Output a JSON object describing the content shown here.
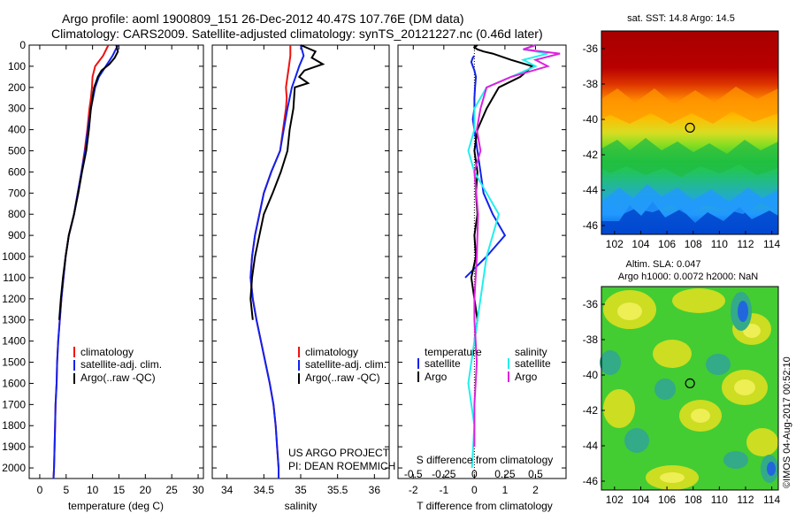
{
  "header": {
    "line1": "Argo profile: aoml 1900809_151 26-Dec-2012 40.47S 107.76E (DM data)",
    "line2": "Climatology: CARS2009. Satellite-adjusted climatology: synTS_20121227.nc (0.46d later)"
  },
  "side_stamp": "©IMOS 04-Aug-2017 00:52:10",
  "project_text": [
    "US ARGO PROJECT",
    "PI: DEAN ROEMMICH"
  ],
  "colors": {
    "climatology": "#ee1111",
    "satellite": "#1122ee",
    "argo": "#000000",
    "sat_salinity": "#22eeee",
    "argo_salinity": "#dd22dd"
  },
  "chart_data": [
    {
      "type": "line",
      "xlabel": "temperature (deg C)",
      "xlim": [
        -2,
        31
      ],
      "ylim": [
        0,
        2050
      ],
      "xticks": [
        0,
        5,
        10,
        15,
        20,
        25,
        30
      ],
      "yticks": [
        0,
        100,
        200,
        300,
        400,
        500,
        600,
        700,
        800,
        900,
        1000,
        1100,
        1200,
        1300,
        1400,
        1500,
        1600,
        1700,
        1800,
        1900,
        2000
      ],
      "legend": [
        "climatology",
        "satellite-adj. clim.",
        "Argo(..raw -QC)"
      ],
      "series": [
        {
          "name": "climatology",
          "color": "#ee1111",
          "x": [
            13.0,
            12.0,
            10.5,
            10.0,
            9.9,
            9.7,
            9.4,
            9.0,
            8.5,
            7.9,
            7.2,
            6.5,
            5.5,
            4.9,
            4.5,
            4.1,
            3.8,
            3.5,
            3.3,
            3.2,
            3.0,
            2.9,
            2.8,
            2.7,
            2.6
          ],
          "y": [
            0,
            50,
            100,
            150,
            200,
            250,
            300,
            400,
            500,
            600,
            700,
            800,
            900,
            1000,
            1100,
            1200,
            1300,
            1400,
            1500,
            1600,
            1700,
            1800,
            1900,
            2000,
            2050
          ]
        },
        {
          "name": "satellite-adj. clim.",
          "color": "#1122ee",
          "x": [
            14.8,
            13.8,
            12.5,
            11.2,
            10.5,
            10.1,
            9.7,
            9.1,
            8.6,
            7.9,
            7.2,
            6.5,
            5.5,
            4.9,
            4.5,
            4.1,
            3.8,
            3.5,
            3.3,
            3.2,
            3.0,
            2.9,
            2.8,
            2.7,
            2.6
          ],
          "y": [
            0,
            50,
            100,
            150,
            200,
            250,
            300,
            400,
            500,
            600,
            700,
            800,
            900,
            1000,
            1100,
            1200,
            1300,
            1400,
            1500,
            1600,
            1700,
            1800,
            1900,
            2000,
            2050
          ]
        },
        {
          "name": "Argo(..raw -QC)",
          "color": "#000000",
          "x": [
            14.5,
            14.8,
            14.2,
            13.2,
            11.7,
            11.0,
            10.6,
            10.3,
            9.7,
            9.3,
            8.8,
            8.0,
            7.3,
            6.5,
            5.5,
            4.9,
            4.4,
            4.0,
            3.7
          ],
          "y": [
            0,
            30,
            60,
            90,
            120,
            150,
            180,
            200,
            300,
            400,
            500,
            600,
            700,
            800,
            900,
            1000,
            1100,
            1200,
            1300
          ]
        }
      ]
    },
    {
      "type": "line",
      "xlabel": "salinity",
      "xlim": [
        33.8,
        36.2
      ],
      "ylim": [
        0,
        2050
      ],
      "xticks": [
        34,
        34.5,
        35,
        35.5,
        36
      ],
      "legend": [
        "climatology",
        "satellite-adj. clim.",
        "Argo(..raw -QC)"
      ],
      "series": [
        {
          "name": "climatology",
          "color": "#ee1111",
          "x": [
            34.86,
            34.86,
            34.84,
            34.82,
            34.8,
            34.81,
            34.8,
            34.76,
            34.72,
            34.6,
            34.5,
            34.44,
            34.38,
            34.34,
            34.32,
            34.35,
            34.4,
            34.46,
            34.52,
            34.58,
            34.63,
            34.66,
            34.68,
            34.7,
            34.7
          ],
          "y": [
            0,
            50,
            100,
            150,
            200,
            250,
            300,
            400,
            500,
            600,
            700,
            800,
            900,
            1000,
            1100,
            1200,
            1300,
            1400,
            1500,
            1600,
            1700,
            1800,
            1900,
            2000,
            2050
          ]
        },
        {
          "name": "satellite-adj. clim.",
          "color": "#1122ee",
          "x": [
            35.0,
            35.04,
            34.98,
            34.93,
            34.88,
            34.85,
            34.82,
            34.77,
            34.72,
            34.6,
            34.5,
            34.44,
            34.38,
            34.34,
            34.32,
            34.35,
            34.4,
            34.46,
            34.52,
            34.58,
            34.63,
            34.66,
            34.68,
            34.7,
            34.7
          ],
          "y": [
            0,
            50,
            100,
            150,
            200,
            250,
            300,
            400,
            500,
            600,
            700,
            800,
            900,
            1000,
            1100,
            1200,
            1300,
            1400,
            1500,
            1600,
            1700,
            1800,
            1900,
            2000,
            2050
          ]
        },
        {
          "name": "Argo(..raw -QC)",
          "color": "#000000",
          "x": [
            35.0,
            35.2,
            35.15,
            35.3,
            35.05,
            34.98,
            35.1,
            34.92,
            34.9,
            34.85,
            34.82,
            34.73,
            34.62,
            34.5,
            34.44,
            34.38,
            34.34,
            34.32,
            34.35
          ],
          "y": [
            0,
            30,
            60,
            90,
            120,
            150,
            180,
            200,
            300,
            400,
            500,
            600,
            700,
            800,
            900,
            1000,
            1100,
            1200,
            1300
          ]
        }
      ]
    },
    {
      "type": "line",
      "xlabel": "T difference from climatology",
      "x2label": "S difference from climatology",
      "xlim": [
        -2.5,
        3.0
      ],
      "ylim": [
        0,
        2050
      ],
      "xticks": [
        -2,
        -1,
        0,
        1,
        2
      ],
      "x2ticks": [
        -0.5,
        -0.25,
        0,
        0.25,
        0.5
      ],
      "legend_titles": [
        "temperature",
        "salinity"
      ],
      "legend": [
        "satellite",
        "Argo",
        "satellite",
        "Argo"
      ],
      "series": [
        {
          "name": "satellite",
          "color": "#1122ee",
          "x": [
            -0.3,
            0.4,
            1.0,
            0.6,
            0.3,
            0.2,
            0.1,
            0.0,
            -0.05,
            0.0,
            0.0,
            0.02,
            0.05,
            0.0,
            -0.05,
            -0.1,
            -0.05,
            0.0
          ],
          "y": [
            1100,
            1000,
            900,
            800,
            700,
            600,
            500,
            400,
            350,
            300,
            250,
            200,
            150,
            120,
            100,
            80,
            60,
            50
          ]
        },
        {
          "name": "Argo",
          "color": "#000000",
          "x": [
            0.0,
            0.1,
            0.0,
            -0.1,
            0.05,
            0.0,
            0.1,
            0.05,
            0.1,
            0.0,
            0.1,
            0.4,
            0.8,
            1.5,
            1.9,
            1.2,
            0.6,
            0.3,
            0.1,
            0.0,
            0.1
          ],
          "y": [
            1400,
            1300,
            1200,
            1100,
            1000,
            900,
            800,
            700,
            600,
            500,
            400,
            300,
            200,
            150,
            100,
            70,
            40,
            30,
            20,
            10,
            0
          ]
        },
        {
          "name": "satellite",
          "color": "#22eeee",
          "x": [
            -0.02,
            0.0,
            -0.05,
            0.0,
            0.05,
            0.1,
            0.2,
            0.0,
            -0.05,
            0.0,
            0.0,
            0.1,
            0.3,
            0.5,
            0.4,
            0.6,
            0.4,
            0.5
          ],
          "y": [
            2000,
            1800,
            1600,
            1400,
            1200,
            1000,
            800,
            600,
            500,
            400,
            300,
            200,
            150,
            100,
            70,
            40,
            20,
            0
          ]
        },
        {
          "name": "Argo",
          "color": "#dd22dd",
          "x": [
            0.0,
            0.0,
            0.02,
            0.0,
            0.0,
            0.02,
            0.03,
            0.0,
            0.05,
            0.02,
            0.05,
            0.1,
            0.3,
            0.6,
            0.5,
            0.7,
            0.4,
            0.5
          ],
          "y": [
            1900,
            1700,
            1500,
            1300,
            1200,
            1000,
            800,
            600,
            500,
            400,
            300,
            200,
            150,
            100,
            70,
            40,
            20,
            0
          ]
        }
      ]
    },
    {
      "type": "heatmap",
      "title": "sat. SST: 14.8 Argo: 14.5",
      "xlim": [
        101,
        114.5
      ],
      "ylim": [
        -46.5,
        -35
      ],
      "xticks": [
        102,
        104,
        106,
        108,
        110,
        112,
        114
      ],
      "yticks": [
        -36,
        -38,
        -40,
        -42,
        -44,
        -46
      ],
      "marker": {
        "lon": 107.76,
        "lat": -40.47
      }
    },
    {
      "type": "heatmap",
      "title": "Altim. SLA: 0.047",
      "subtitle": "Argo h1000: 0.0072 h2000: NaN",
      "xlim": [
        101,
        114.5
      ],
      "ylim": [
        -46.5,
        -35
      ],
      "xticks": [
        102,
        104,
        106,
        108,
        110,
        112,
        114
      ],
      "yticks": [
        -36,
        -38,
        -40,
        -42,
        -44,
        -46
      ],
      "marker": {
        "lon": 107.76,
        "lat": -40.47
      }
    }
  ]
}
